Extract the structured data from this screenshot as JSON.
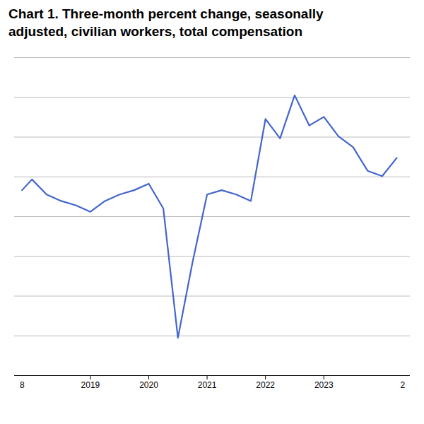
{
  "chart_data": {
    "type": "line",
    "title": "Chart 1. Three-month percent change, seasonally",
    "subtitle": "adjusted, civilian workers, total compensation",
    "x": [
      2017.83,
      2018.0,
      2018.25,
      2018.5,
      2018.75,
      2019.0,
      2019.25,
      2019.5,
      2019.75,
      2020.0,
      2020.25,
      2020.5,
      2020.75,
      2021.0,
      2021.25,
      2021.5,
      2021.75,
      2022.0,
      2022.25,
      2022.5,
      2022.75,
      2023.0,
      2023.25,
      2023.5,
      2023.75,
      2024.0,
      2024.25
    ],
    "values": [
      0.62,
      0.72,
      0.58,
      0.52,
      0.48,
      0.42,
      0.52,
      0.58,
      0.62,
      0.68,
      0.45,
      -0.75,
      -0.05,
      0.58,
      0.62,
      0.58,
      0.52,
      1.28,
      1.1,
      1.5,
      1.22,
      1.3,
      1.12,
      1.02,
      0.8,
      0.75,
      0.92
    ],
    "color": "#4466cc",
    "xlim": [
      2017.7,
      2024.48
    ],
    "ylim": [
      -1.1,
      1.85
    ],
    "xticks": [
      2019,
      2020,
      2021,
      2022,
      2023
    ],
    "yticks": [
      -1.1,
      -0.73125,
      -0.3625,
      0.00625,
      0.375,
      0.74375,
      1.1125,
      1.48125,
      1.85
    ],
    "grid": true,
    "tick_labels": "x",
    "annotations": [
      {
        "text": "8",
        "x": 2017.83
      },
      {
        "text": "2",
        "x": 2024.35
      }
    ]
  }
}
